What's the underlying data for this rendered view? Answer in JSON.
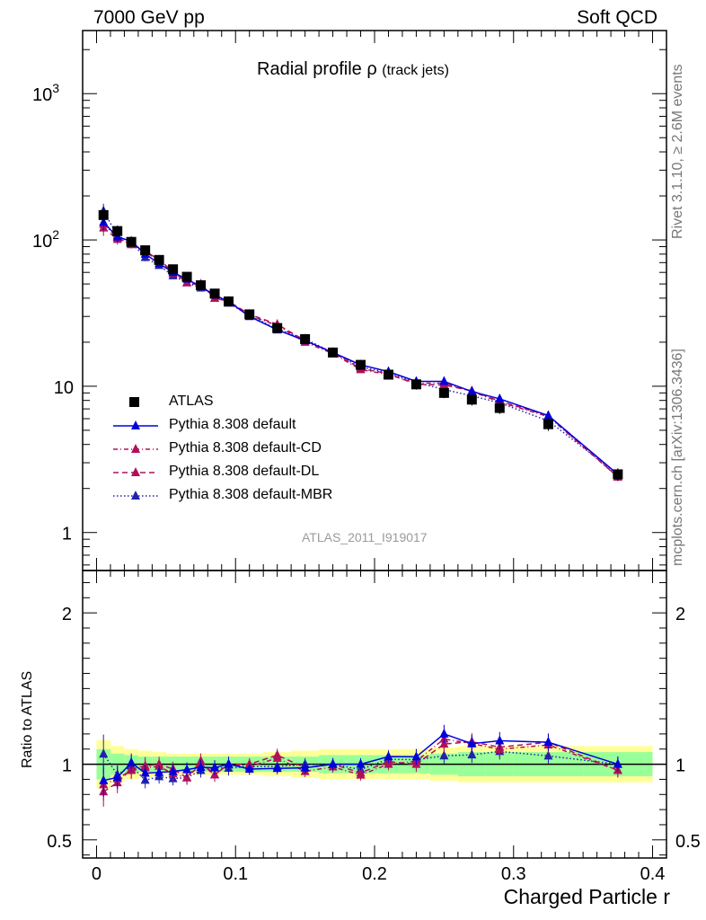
{
  "header": {
    "left": "7000 GeV pp",
    "right": "Soft QCD"
  },
  "side_labels": {
    "rivet": "Rivet 3.1.10, ≥ 2.6M events",
    "mcplots": "mcplots.cern.ch [arXiv:1306.3436]"
  },
  "plot_title": {
    "main": "Radial profile ρ",
    "sub": "(track jets)"
  },
  "analysis_tag": "ATLAS_2011_I919017",
  "axes": {
    "xlabel": "Charged Particle r",
    "ratio_ylabel": "Ratio to ATLAS"
  },
  "colors": {
    "data": "#000000",
    "default": "#0000dd",
    "cd": "#b0105a",
    "dl": "#b0105a",
    "mbr": "#2222aa",
    "band_inner": "#99ff99",
    "band_outer": "#ffff99"
  },
  "legend": [
    {
      "label": "ATLAS",
      "style": "data"
    },
    {
      "label": "Pythia 8.308 default",
      "style": "default"
    },
    {
      "label": "Pythia 8.308 default-CD",
      "style": "cd"
    },
    {
      "label": "Pythia 8.308 default-DL",
      "style": "dl"
    },
    {
      "label": "Pythia 8.308 default-MBR",
      "style": "mbr"
    }
  ],
  "chart_data": {
    "type": "line",
    "x_scale": "linear",
    "y_scale": "log",
    "xlim": [
      -0.01,
      0.41
    ],
    "ylim": [
      0.55,
      2700
    ],
    "ratio_ylim": [
      0.38,
      2.28
    ],
    "x_ticks": [
      "0",
      "0.1",
      "0.2",
      "0.3",
      "0.4"
    ],
    "y_ticks": [
      "1",
      "10",
      "10^2",
      "10^3"
    ],
    "ratio_ticks": [
      "0.5",
      "1",
      "2"
    ],
    "x": [
      0.005,
      0.015,
      0.025,
      0.035,
      0.045,
      0.055,
      0.065,
      0.075,
      0.085,
      0.095,
      0.11,
      0.13,
      0.15,
      0.17,
      0.19,
      0.21,
      0.23,
      0.25,
      0.27,
      0.29,
      0.325,
      0.375
    ],
    "series": [
      {
        "name": "ATLAS",
        "style": "data",
        "values": [
          148,
          115,
          97,
          85,
          73,
          63,
          56,
          49,
          43,
          38,
          31,
          25,
          21,
          17,
          14,
          12,
          10.3,
          9.0,
          8.1,
          7.1,
          5.5,
          2.5
        ]
      },
      {
        "name": "Pythia 8.308 default",
        "style": "default",
        "values": [
          132,
          105,
          98,
          80,
          69,
          60,
          54,
          48,
          42,
          38,
          30,
          24.3,
          20.5,
          17,
          14,
          12.6,
          10.8,
          10.8,
          9.2,
          8.2,
          6.3,
          2.5
        ]
      },
      {
        "name": "Pythia 8.308 default-CD",
        "style": "cd",
        "values": [
          128,
          104,
          93,
          83,
          72,
          59,
          51,
          49,
          40,
          38,
          30.5,
          26,
          20,
          16.7,
          13,
          12,
          10.5,
          10.5,
          9.2,
          7.8,
          6.2,
          2.4
        ]
      },
      {
        "name": "Pythia 8.308 default-DL",
        "style": "dl",
        "values": [
          121,
          101,
          94,
          84,
          73,
          61,
          51,
          50,
          40,
          38,
          31,
          26.5,
          20.5,
          17,
          13.2,
          12.2,
          10.3,
          10.2,
          9.3,
          7.9,
          6.3,
          2.4
        ]
      },
      {
        "name": "Pythia 8.308 default-MBR",
        "style": "mbr",
        "values": [
          158,
          107,
          96,
          76,
          67,
          57,
          51,
          47,
          42,
          37,
          30.5,
          24.6,
          21,
          17,
          13.5,
          12.4,
          10.6,
          9.5,
          8.6,
          7.7,
          5.8,
          2.5
        ]
      }
    ],
    "relative_errors": {
      "data": [
        0.13,
        0.09,
        0.07,
        0.07,
        0.06,
        0.06,
        0.06,
        0.06,
        0.06,
        0.06,
        0.06,
        0.06,
        0.07,
        0.07,
        0.07,
        0.07,
        0.08,
        0.08,
        0.09,
        0.09,
        0.1,
        0.1
      ],
      "mc": [
        0.12,
        0.08,
        0.06,
        0.06,
        0.05,
        0.05,
        0.05,
        0.05,
        0.05,
        0.05,
        0.04,
        0.04,
        0.04,
        0.04,
        0.04,
        0.04,
        0.05,
        0.05,
        0.05,
        0.05,
        0.05,
        0.05
      ]
    },
    "ratio_band": {
      "edges": [
        0.0,
        0.01,
        0.02,
        0.03,
        0.04,
        0.05,
        0.06,
        0.07,
        0.08,
        0.09,
        0.1,
        0.12,
        0.14,
        0.16,
        0.18,
        0.2,
        0.22,
        0.24,
        0.26,
        0.28,
        0.3,
        0.35,
        0.4
      ],
      "inner": [
        0.1,
        0.07,
        0.06,
        0.05,
        0.05,
        0.05,
        0.05,
        0.05,
        0.05,
        0.05,
        0.05,
        0.05,
        0.05,
        0.06,
        0.06,
        0.06,
        0.06,
        0.07,
        0.08,
        0.08,
        0.08,
        0.08
      ],
      "outer": [
        0.16,
        0.12,
        0.1,
        0.09,
        0.08,
        0.07,
        0.07,
        0.07,
        0.07,
        0.07,
        0.07,
        0.08,
        0.09,
        0.1,
        0.1,
        0.1,
        0.1,
        0.11,
        0.12,
        0.12,
        0.12,
        0.12
      ]
    },
    "grid": false,
    "legend_position": "bottom-left"
  }
}
